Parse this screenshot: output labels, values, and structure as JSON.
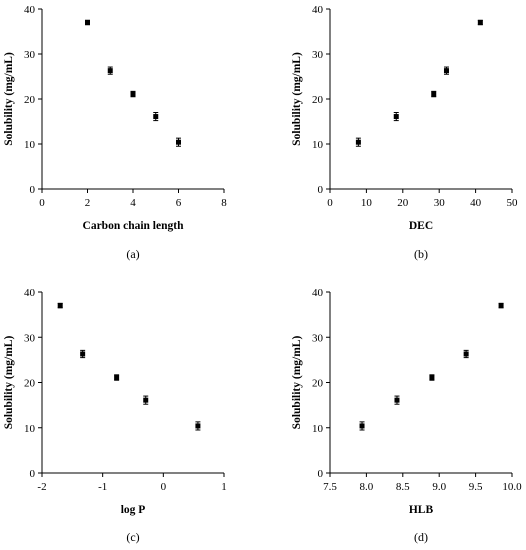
{
  "chart_data": [
    {
      "type": "scatter",
      "caption": "(a)",
      "xlabel": "Carbon chain length",
      "ylabel": "Solubility (mg/mL)",
      "xlim": [
        0,
        8
      ],
      "ylim": [
        0,
        40
      ],
      "xticks": [
        0,
        2,
        4,
        6,
        8
      ],
      "yticks": [
        0,
        10,
        20,
        30,
        40
      ],
      "xtick_labels": [
        "0",
        "2",
        "4",
        "6",
        "8"
      ],
      "ytick_labels": [
        "0",
        "10",
        "20",
        "30",
        "40"
      ],
      "grid": false,
      "points": [
        {
          "x": 2,
          "y": 37.0,
          "err": 0.5
        },
        {
          "x": 3,
          "y": 26.3,
          "err": 0.8
        },
        {
          "x": 4,
          "y": 21.1,
          "err": 0.6
        },
        {
          "x": 5,
          "y": 16.1,
          "err": 0.9
        },
        {
          "x": 6,
          "y": 10.4,
          "err": 0.9
        }
      ]
    },
    {
      "type": "scatter",
      "caption": "(b)",
      "xlabel": "DEC",
      "ylabel": "Solubility (mg/mL)",
      "xlim": [
        0,
        50
      ],
      "ylim": [
        0,
        40
      ],
      "xticks": [
        0,
        10,
        20,
        30,
        40,
        50
      ],
      "yticks": [
        0,
        10,
        20,
        30,
        40
      ],
      "xtick_labels": [
        "0",
        "10",
        "20",
        "30",
        "40",
        "50"
      ],
      "ytick_labels": [
        "0",
        "10",
        "20",
        "30",
        "40"
      ],
      "grid": false,
      "points": [
        {
          "x": 7.8,
          "y": 10.4,
          "err": 0.9
        },
        {
          "x": 18.2,
          "y": 16.1,
          "err": 0.9
        },
        {
          "x": 28.5,
          "y": 21.1,
          "err": 0.6
        },
        {
          "x": 32.0,
          "y": 26.3,
          "err": 0.8
        },
        {
          "x": 41.3,
          "y": 37.0,
          "err": 0.5
        }
      ]
    },
    {
      "type": "scatter",
      "caption": "(c)",
      "xlabel": "log P",
      "ylabel": "Solubility (mg/mL)",
      "xlim": [
        -2,
        1
      ],
      "ylim": [
        0,
        40
      ],
      "xticks": [
        -2,
        -1,
        0,
        1
      ],
      "yticks": [
        0,
        10,
        20,
        30,
        40
      ],
      "xtick_labels": [
        "-2",
        "-1",
        "0",
        "1"
      ],
      "ytick_labels": [
        "0",
        "10",
        "20",
        "30",
        "40"
      ],
      "grid": false,
      "points": [
        {
          "x": -1.7,
          "y": 37.0,
          "err": 0.5
        },
        {
          "x": -1.33,
          "y": 26.3,
          "err": 0.8
        },
        {
          "x": -0.77,
          "y": 21.1,
          "err": 0.6
        },
        {
          "x": -0.29,
          "y": 16.1,
          "err": 0.9
        },
        {
          "x": 0.57,
          "y": 10.4,
          "err": 0.9
        }
      ]
    },
    {
      "type": "scatter",
      "caption": "(d)",
      "xlabel": "HLB",
      "ylabel": "Solubility (mg/mL)",
      "xlim": [
        7.5,
        10.0
      ],
      "ylim": [
        0,
        40
      ],
      "xticks": [
        7.5,
        8.0,
        8.5,
        9.0,
        9.5,
        10.0
      ],
      "yticks": [
        0,
        10,
        20,
        30,
        40
      ],
      "xtick_labels": [
        "7.5",
        "8.0",
        "8.5",
        "9.0",
        "9.5",
        "10.0"
      ],
      "ytick_labels": [
        "0",
        "10",
        "20",
        "30",
        "40"
      ],
      "grid": false,
      "points": [
        {
          "x": 7.94,
          "y": 10.4,
          "err": 0.9
        },
        {
          "x": 8.42,
          "y": 16.1,
          "err": 0.9
        },
        {
          "x": 8.9,
          "y": 21.1,
          "err": 0.6
        },
        {
          "x": 9.37,
          "y": 26.3,
          "err": 0.8
        },
        {
          "x": 9.85,
          "y": 37.0,
          "err": 0.5
        }
      ]
    }
  ]
}
